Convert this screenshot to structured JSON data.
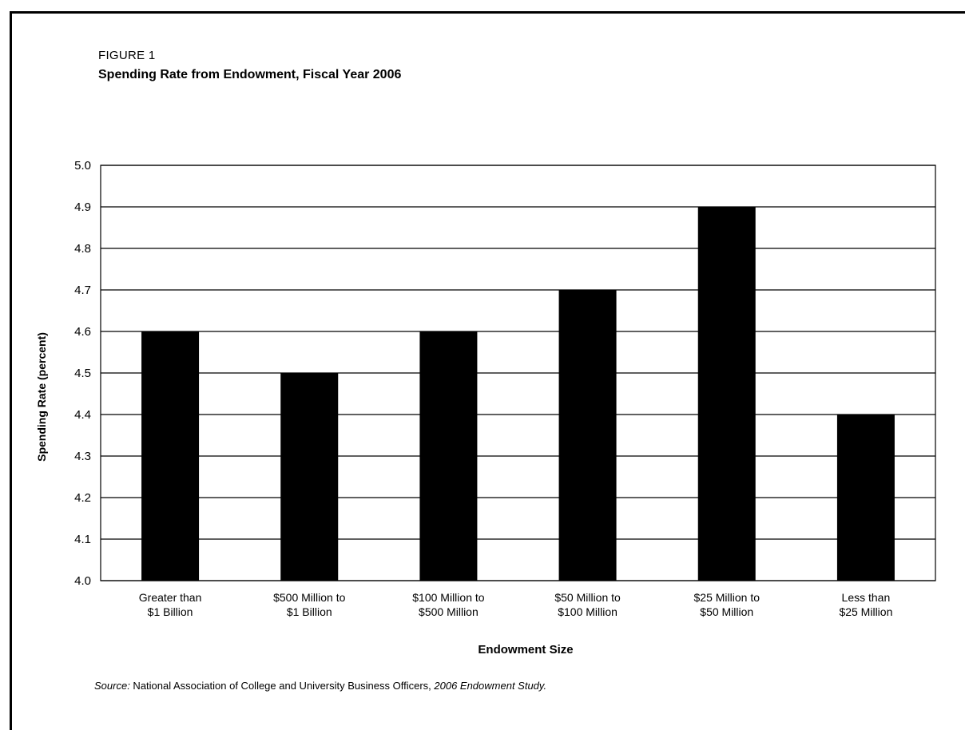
{
  "figure": {
    "label": "FIGURE 1",
    "title": "Spending Rate from Endowment, Fiscal Year 2006"
  },
  "source": {
    "prefix": "Source:",
    "text": " National Association of College and University Business Officers, ",
    "work": "2006 Endowment Study."
  },
  "chart_data": {
    "type": "bar",
    "title": "Spending Rate from Endowment, Fiscal Year 2006",
    "xlabel": "Endowment Size",
    "ylabel": "Spending Rate (percent)",
    "ylim": [
      4.0,
      5.0
    ],
    "yticks": [
      "4.0",
      "4.1",
      "4.2",
      "4.3",
      "4.4",
      "4.5",
      "4.6",
      "4.7",
      "4.8",
      "4.9",
      "5.0"
    ],
    "grid": true,
    "bar_color": "#000000",
    "categories": [
      [
        "Greater than",
        "$1 Billion"
      ],
      [
        "$500 Million to",
        "$1 Billion"
      ],
      [
        "$100 Million to",
        "$500 Million"
      ],
      [
        "$50 Million to",
        "$100 Million"
      ],
      [
        "$25 Million to",
        "$50 Million"
      ],
      [
        "Less than",
        "$25 Million"
      ]
    ],
    "values": [
      4.6,
      4.5,
      4.6,
      4.7,
      4.9,
      4.4
    ]
  }
}
